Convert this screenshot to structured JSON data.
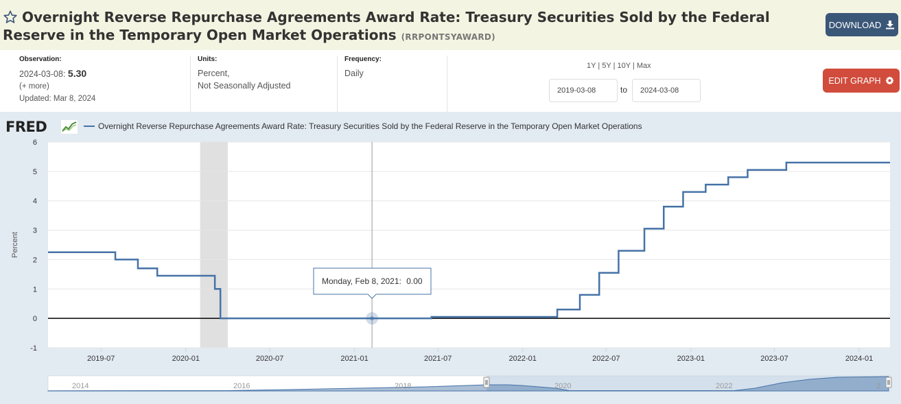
{
  "header": {
    "title": "Overnight Reverse Repurchase Agreements Award Rate: Treasury Securities Sold by the Federal Reserve in the Temporary Open Market Operations",
    "series_id": "(RRPONTSYAWARD)",
    "download_label": "DOWNLOAD"
  },
  "meta": {
    "observation_label": "Observation:",
    "observation_date": "2024-03-08:",
    "observation_value": "5.30",
    "more_label": "(+ more)",
    "updated": "Updated: Mar 8, 2024",
    "units_label": "Units:",
    "units_line1": "Percent,",
    "units_line2": "Not Seasonally Adjusted",
    "frequency_label": "Frequency:",
    "frequency_value": "Daily",
    "range_links": [
      "1Y",
      "5Y",
      "10Y",
      "Max"
    ],
    "start_date": "2019-03-08",
    "to_label": "to",
    "end_date": "2024-03-08",
    "edit_label": "EDIT GRAPH"
  },
  "brand": {
    "logo_text": "FRED"
  },
  "colors": {
    "series": "#4572a7",
    "header_bg": "#f4f4e2",
    "download_bg": "#3b5778",
    "edit_bg": "#d14c3c",
    "chart_bg": "#e2eaf2",
    "recession": "#e0e0e0"
  },
  "tooltip": {
    "date": "Monday, Feb 8, 2021:",
    "value": "0.00"
  },
  "chart_data": {
    "type": "line",
    "title": "",
    "legend": [
      "Overnight Reverse Repurchase Agreements Award Rate: Treasury Securities Sold by the Federal Reserve in the Temporary Open Market Operations"
    ],
    "legend_position": "top-left",
    "ylabel": "Percent",
    "xlabel": "",
    "ylim": [
      -1,
      6
    ],
    "xlim": [
      "2019-03-08",
      "2024-03-08"
    ],
    "y_ticks": [
      -1,
      0,
      1,
      2,
      3,
      4,
      5,
      6
    ],
    "x_ticks": [
      "2019-07",
      "2020-01",
      "2020-07",
      "2021-01",
      "2021-07",
      "2022-01",
      "2022-07",
      "2023-01",
      "2023-07",
      "2024-01"
    ],
    "grid": "horizontal",
    "recession_shading": [
      "2020-02",
      "2020-04"
    ],
    "series": [
      {
        "name": "RRPONTSYAWARD",
        "steps": [
          {
            "date": "2019-03-08",
            "value": 2.25
          },
          {
            "date": "2019-08-01",
            "value": 2.0
          },
          {
            "date": "2019-09-19",
            "value": 1.7
          },
          {
            "date": "2019-10-31",
            "value": 1.45
          },
          {
            "date": "2020-03-04",
            "value": 1.0
          },
          {
            "date": "2020-03-16",
            "value": 0.0
          },
          {
            "date": "2021-06-17",
            "value": 0.05
          },
          {
            "date": "2022-03-17",
            "value": 0.3
          },
          {
            "date": "2022-05-05",
            "value": 0.8
          },
          {
            "date": "2022-06-16",
            "value": 1.55
          },
          {
            "date": "2022-07-28",
            "value": 2.3
          },
          {
            "date": "2022-09-22",
            "value": 3.05
          },
          {
            "date": "2022-11-03",
            "value": 3.8
          },
          {
            "date": "2022-12-15",
            "value": 4.3
          },
          {
            "date": "2023-02-02",
            "value": 4.55
          },
          {
            "date": "2023-03-23",
            "value": 4.8
          },
          {
            "date": "2023-05-04",
            "value": 5.05
          },
          {
            "date": "2023-07-27",
            "value": 5.3
          },
          {
            "date": "2024-03-08",
            "value": 5.3
          }
        ]
      }
    ],
    "navigator_ticks": [
      "2014",
      "2016",
      "2018",
      "2020",
      "2022",
      "2"
    ]
  }
}
